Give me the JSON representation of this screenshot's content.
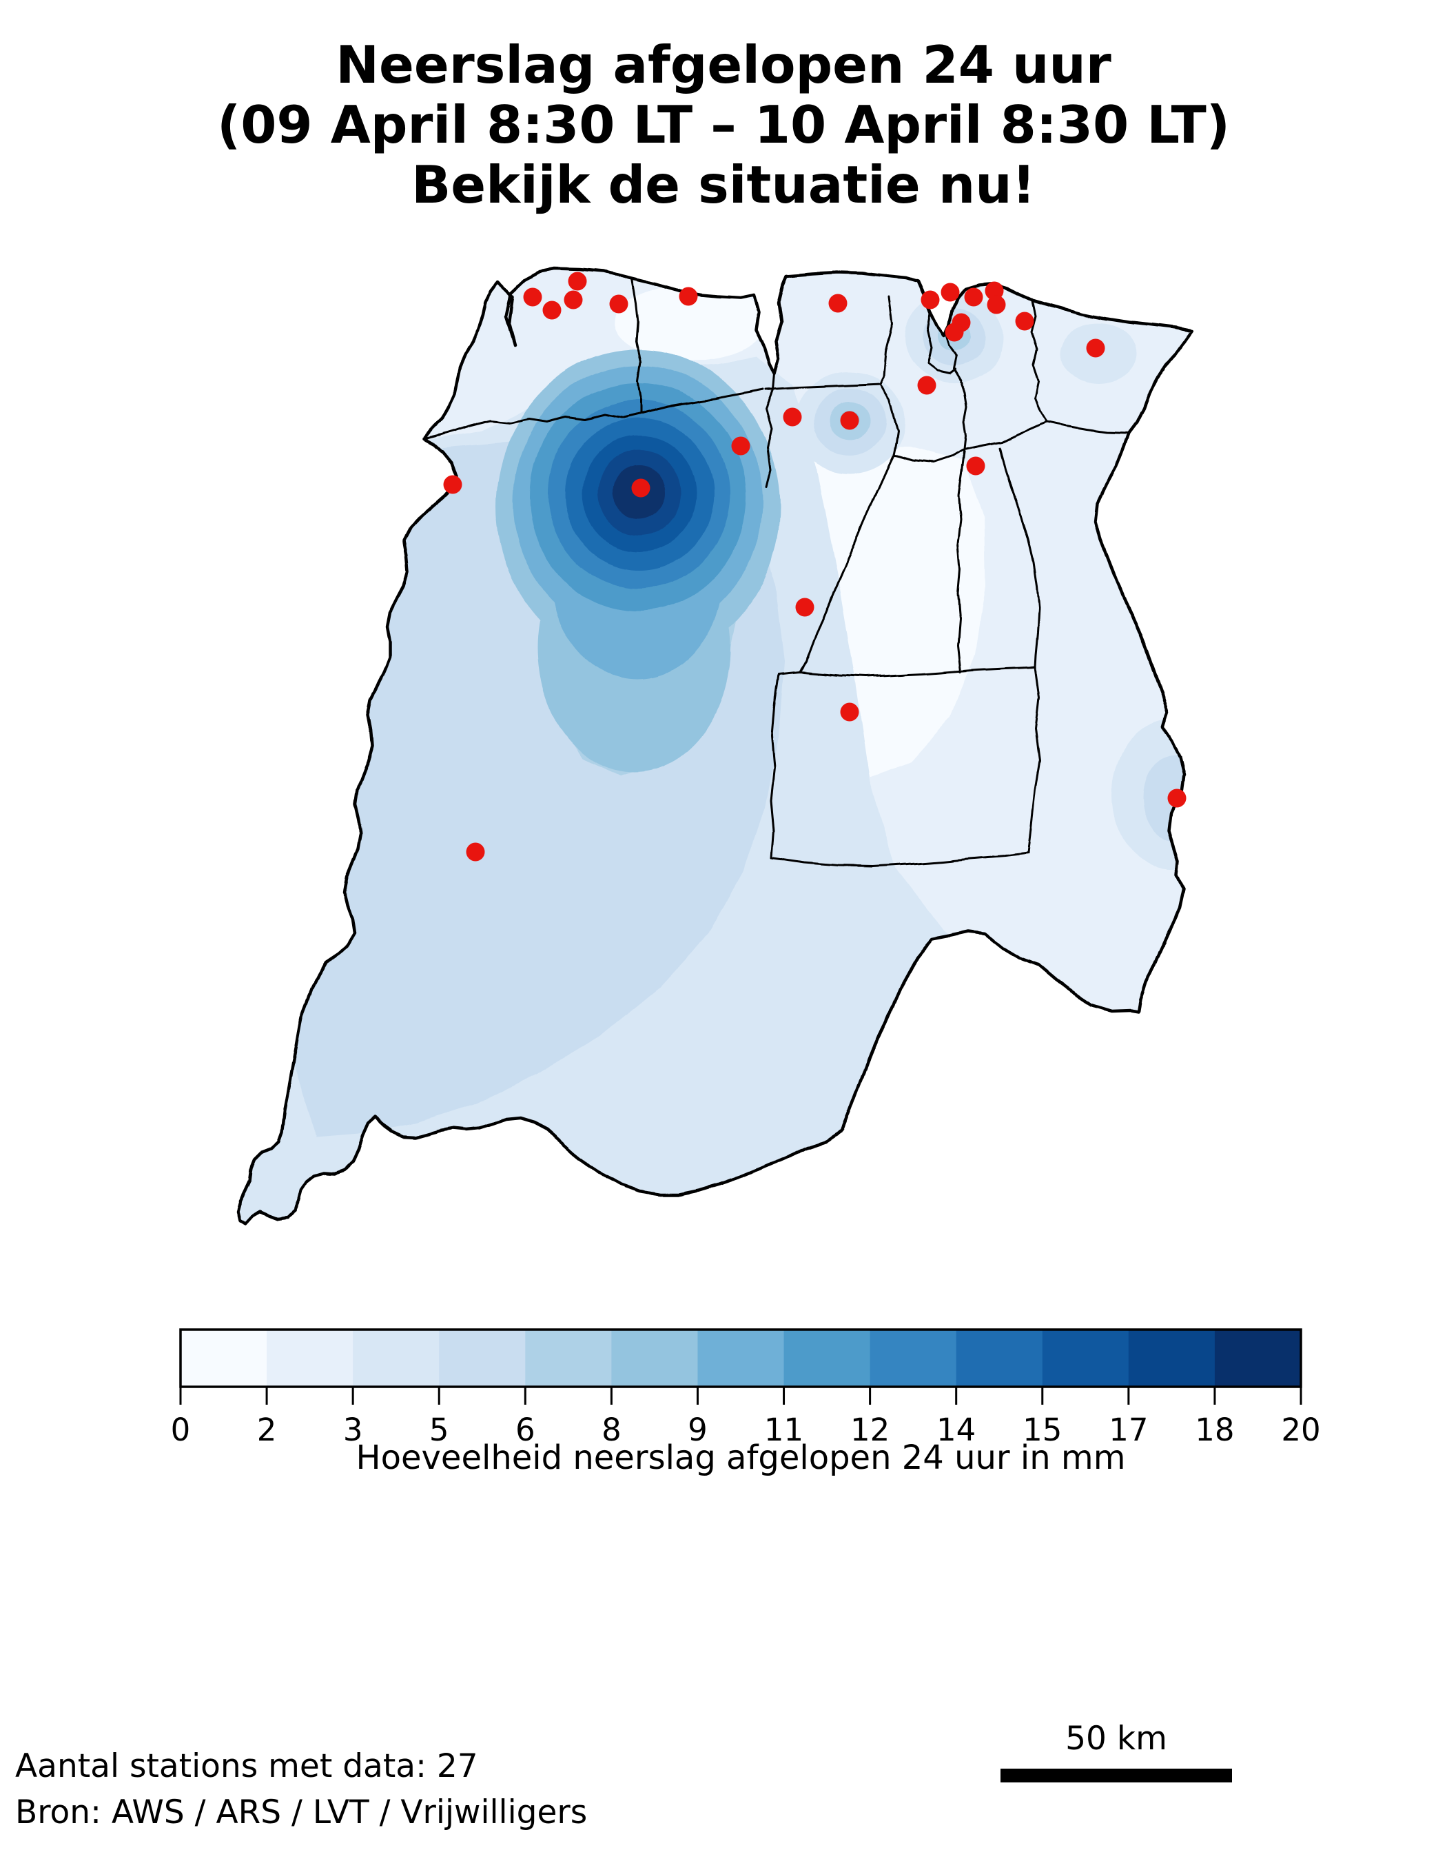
{
  "title": {
    "line1": "Neerslag afgelopen 24 uur",
    "line2": "(09 April 8:30 LT – 10 April 8:30 LT)",
    "line3": "Bekijk de situatie nu!"
  },
  "map": {
    "region": "Suriname",
    "stations": {
      "count": 27,
      "dot_color": "#e8150f",
      "points": [
        [
          773,
          431
        ],
        [
          838,
          408
        ],
        [
          801,
          450
        ],
        [
          832,
          435
        ],
        [
          898,
          441
        ],
        [
          999,
          430
        ],
        [
          657,
          703
        ],
        [
          930,
          708
        ],
        [
          1216,
          440
        ],
        [
          1075,
          647
        ],
        [
          1150,
          605
        ],
        [
          1233,
          610
        ],
        [
          1350,
          435
        ],
        [
          1379,
          424
        ],
        [
          1395,
          468
        ],
        [
          1413,
          431
        ],
        [
          1443,
          422
        ],
        [
          1446,
          442
        ],
        [
          1487,
          466
        ],
        [
          1385,
          482
        ],
        [
          1345,
          559
        ],
        [
          1590,
          505
        ],
        [
          1416,
          676
        ],
        [
          1168,
          881
        ],
        [
          1233,
          1033
        ],
        [
          690,
          1236
        ],
        [
          1708,
          1158
        ]
      ]
    }
  },
  "colorbar": {
    "label": "Hoeveelheid neerslag afgelopen 24 uur in mm",
    "tick_labels": [
      "0",
      "2",
      "3",
      "5",
      "6",
      "8",
      "9",
      "11",
      "12",
      "14",
      "15",
      "17",
      "18",
      "20"
    ],
    "boundaries_mm": [
      0,
      2,
      3,
      5,
      6,
      8,
      9,
      11,
      12,
      14,
      15,
      17,
      18,
      20
    ],
    "colors": [
      "#f7fbff",
      "#e7f0fa",
      "#d8e7f5",
      "#c9ddf0",
      "#aed1e7",
      "#94c4df",
      "#6fb0d7",
      "#4d9bca",
      "#3585c1",
      "#1f6db1",
      "#10589f",
      "#08468b",
      "#08306b"
    ]
  },
  "scalebar": {
    "label": "50 km"
  },
  "footer": {
    "stations_line": "Aantal stations met data: 27",
    "source_line": "Bron: AWS / ARS / LVT / Vrijwilligers"
  }
}
